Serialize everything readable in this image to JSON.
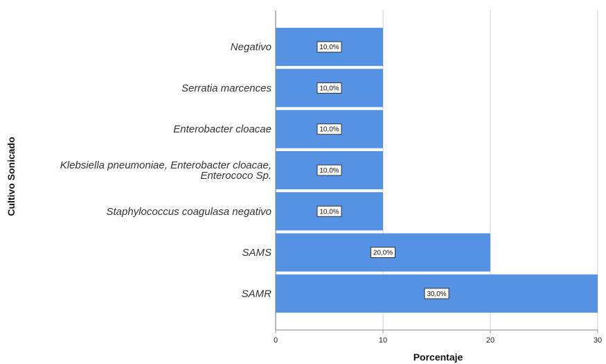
{
  "chart_data": {
    "type": "bar",
    "orientation": "horizontal",
    "categories": [
      "Negativo",
      "Serratia marcences",
      "Enterobacter cloacae",
      "Klebsiella pneumoniae, Enterobacter cloacae, Enterococo Sp.",
      "Staphylococcus coagulasa negativo",
      "SAMS",
      "SAMR"
    ],
    "category_lines": [
      [
        "Negativo"
      ],
      [
        "Serratia marcences"
      ],
      [
        "Enterobacter cloacae"
      ],
      [
        "Klebsiella pneumoniae, Enterobacter cloacae,",
        "Enterococo Sp."
      ],
      [
        "Staphylococcus coagulasa negativo"
      ],
      [
        "SAMS"
      ],
      [
        "SAMR"
      ]
    ],
    "values": [
      10,
      10,
      10,
      10,
      10,
      20,
      30
    ],
    "data_labels": [
      "10,0%",
      "10,0%",
      "10,0%",
      "10,0%",
      "10,0%",
      "20,0%",
      "30,0%"
    ],
    "xlabel": "Porcentaje",
    "ylabel": "Cultivo Sonicado",
    "xlim": [
      0,
      30
    ],
    "xticks": [
      0,
      10,
      20,
      30
    ],
    "grid": "vertical",
    "bar_color": "#5592e3",
    "legend": "none"
  }
}
